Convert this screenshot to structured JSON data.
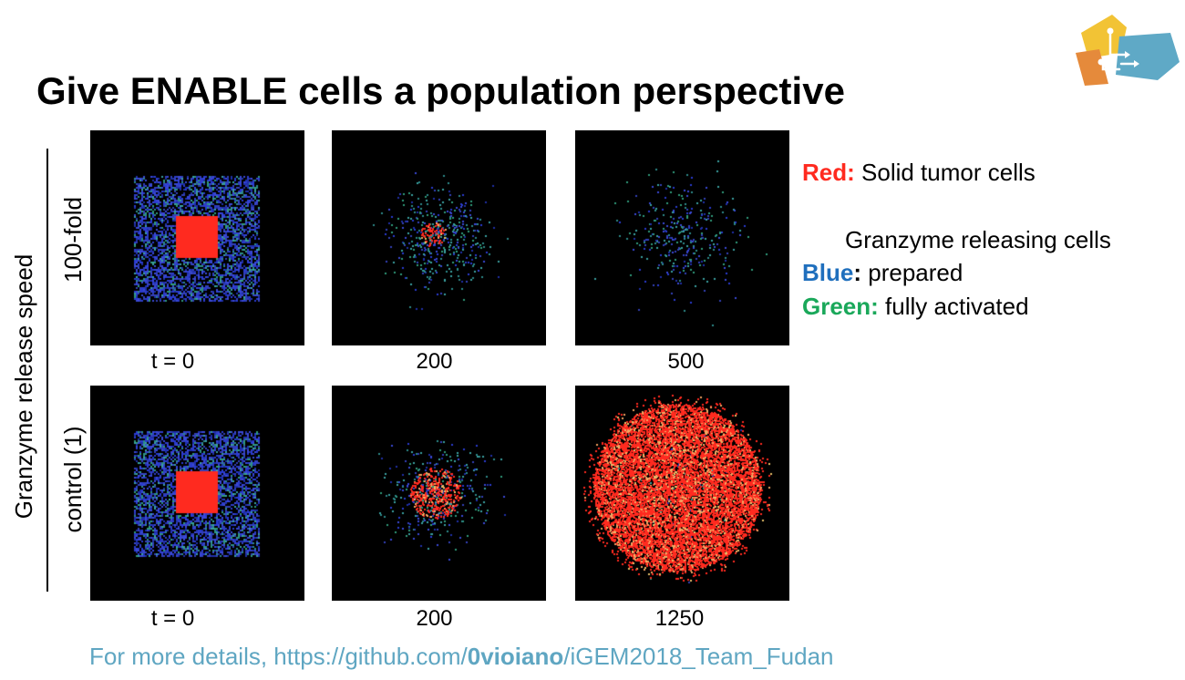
{
  "title": "Give ENABLE cells a population perspective",
  "axis_label": "Granzyme release speed",
  "row_labels": [
    "100-fold",
    "control (1)"
  ],
  "time_labels": {
    "row1": [
      "t = 0",
      "200",
      "500"
    ],
    "row2": [
      "t = 0",
      "200",
      "1250"
    ]
  },
  "legend": {
    "red_key": "Red:",
    "red_text": "Solid tumor cells",
    "granzyme_header": "Granzyme releasing cells",
    "blue_key": "Blue",
    "blue_colon": ":",
    "blue_text": "prepared",
    "green_key": "Green:",
    "green_text": "fully activated"
  },
  "footer": {
    "prefix": "For more details, https://github.com/",
    "bold": "0vioiano",
    "suffix": "/iGEM2018_Team_Fudan"
  },
  "colors": {
    "tumor_red": "#ff2a1f",
    "prepared_blue": "#2a3bd0",
    "activated_green": "#2db36f",
    "legend_blue": "#1f6fbd",
    "legend_green": "#1aa85a",
    "link": "#5fa6c2"
  },
  "logo_icon": "igem-fudan-logo"
}
